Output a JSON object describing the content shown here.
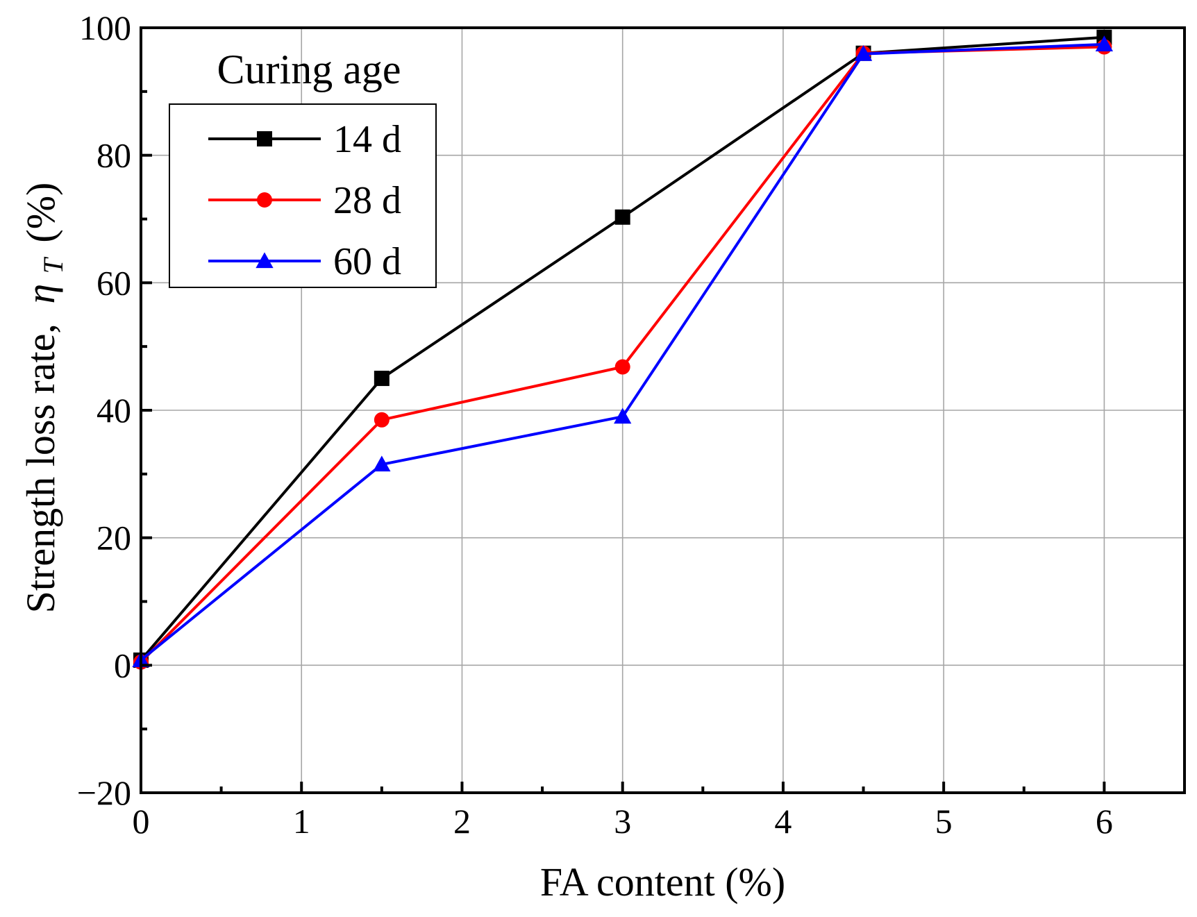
{
  "chart_data": {
    "type": "line",
    "title": "",
    "xlabel": "FA content (%)",
    "ylabel_prefix": "Strength loss rate,",
    "ylabel_symbol": "η",
    "ylabel_subscript": "T",
    "ylabel_suffix": "(%)",
    "xlim": [
      0,
      6.5
    ],
    "ylim": [
      -20,
      100
    ],
    "xticks": [
      0,
      1,
      2,
      3,
      4,
      5,
      6
    ],
    "xtick_labels": [
      "0",
      "1",
      "2",
      "3",
      "4",
      "5",
      "6"
    ],
    "yticks": [
      -20,
      0,
      20,
      40,
      60,
      80,
      100
    ],
    "ytick_labels": [
      "−20",
      "0",
      "20",
      "40",
      "60",
      "80",
      "100"
    ],
    "grid": true,
    "legend_title": "Curing age",
    "legend_position": "top-left",
    "x": [
      0,
      1.5,
      3,
      4.5,
      6
    ],
    "series": [
      {
        "name": "14 d",
        "color": "#000000",
        "marker": "square",
        "values": [
          0.8,
          45.0,
          70.3,
          96.0,
          98.5
        ]
      },
      {
        "name": "28 d",
        "color": "#ff0000",
        "marker": "circle",
        "values": [
          0.5,
          38.5,
          46.8,
          96.0,
          97.0
        ]
      },
      {
        "name": "60 d",
        "color": "#0000ff",
        "marker": "triangle",
        "values": [
          0.8,
          31.5,
          39.0,
          95.9,
          97.4
        ]
      }
    ]
  }
}
